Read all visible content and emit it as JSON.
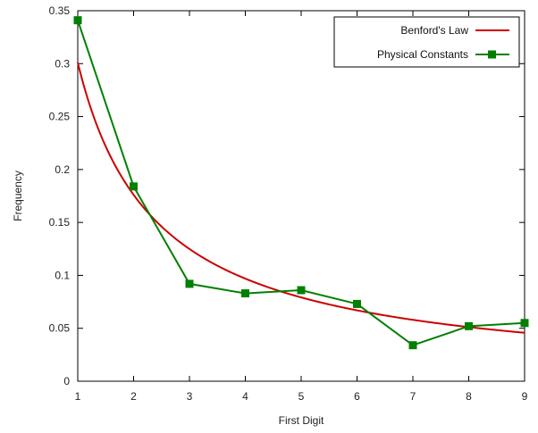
{
  "chart_data": {
    "type": "line",
    "title": "",
    "xlabel": "First Digit",
    "ylabel": "Frequency",
    "xlim": [
      1,
      9
    ],
    "ylim": [
      0,
      0.35
    ],
    "x_ticks": [
      1,
      2,
      3,
      4,
      5,
      6,
      7,
      8,
      9
    ],
    "x_tick_labels": [
      "1",
      "2",
      "3",
      "4",
      "5",
      "6",
      "7",
      "8",
      "9"
    ],
    "y_ticks": [
      0,
      0.05,
      0.1,
      0.15,
      0.2,
      0.25,
      0.3,
      0.35
    ],
    "y_tick_labels": [
      "0",
      "0.05",
      "0.1",
      "0.15",
      "0.2",
      "0.25",
      "0.3",
      "0.35"
    ],
    "grid": false,
    "legend_position": "top-right",
    "series": [
      {
        "name": "Benford's Law",
        "color": "#cc0000",
        "style": "smooth-curve",
        "formula": "log10(1 + 1/d)",
        "x": [
          1,
          2,
          3,
          4,
          5,
          6,
          7,
          8,
          9
        ],
        "values": [
          0.301,
          0.176,
          0.125,
          0.097,
          0.079,
          0.067,
          0.058,
          0.051,
          0.046
        ]
      },
      {
        "name": "Physical Constants",
        "color": "#008000",
        "style": "line-square-markers",
        "x": [
          1,
          2,
          3,
          4,
          5,
          6,
          7,
          8,
          9
        ],
        "values": [
          0.341,
          0.184,
          0.092,
          0.083,
          0.086,
          0.073,
          0.034,
          0.052,
          0.055
        ]
      }
    ]
  }
}
